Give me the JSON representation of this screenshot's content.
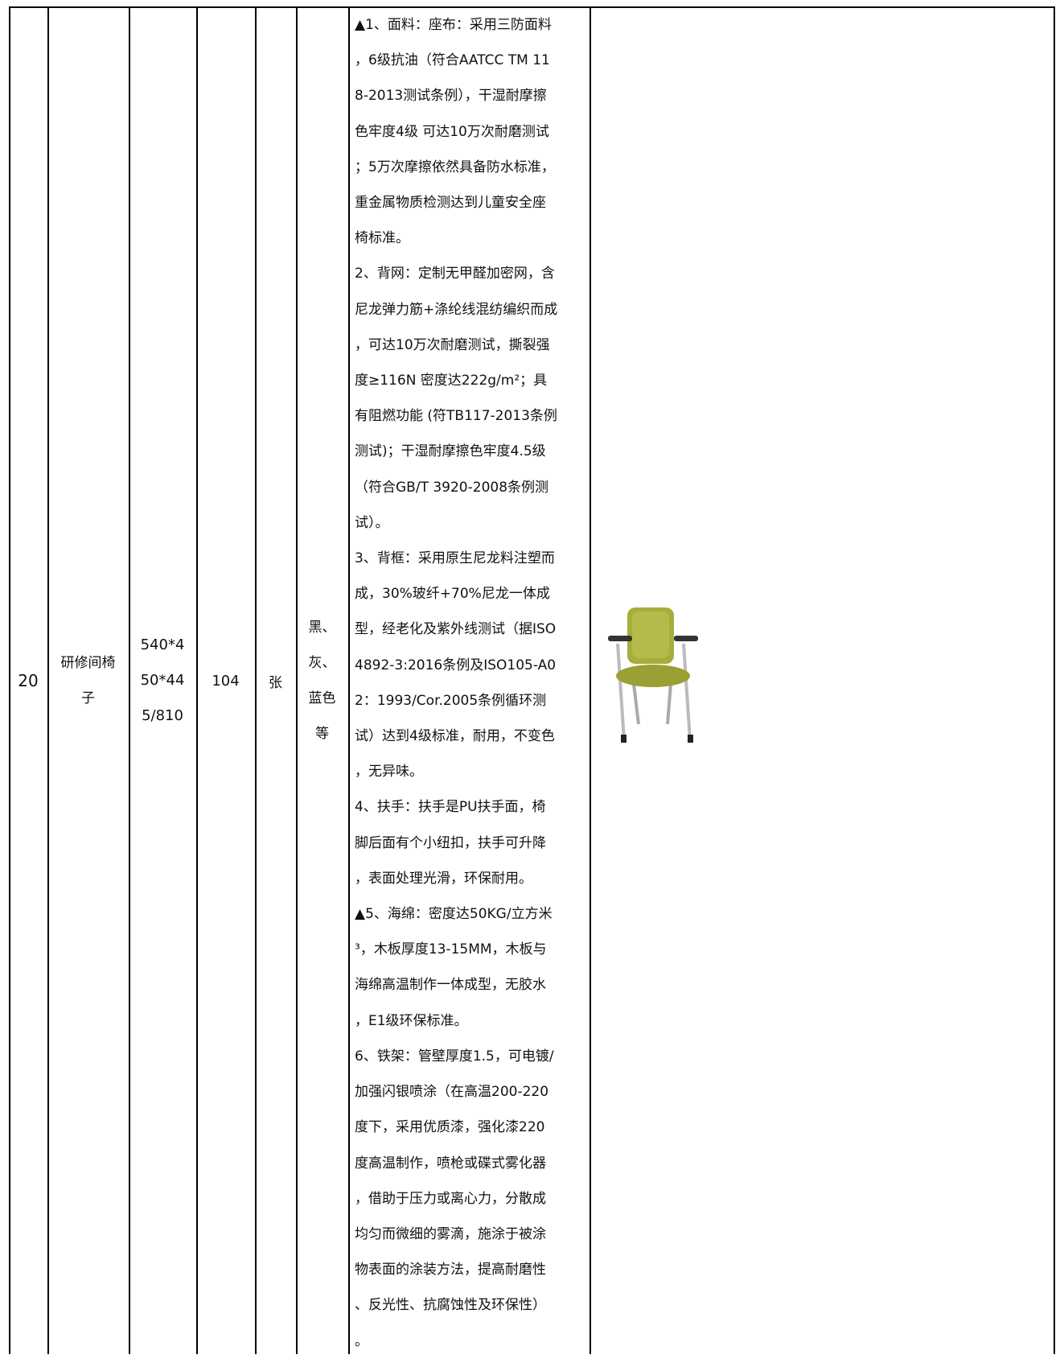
{
  "table": {
    "rows": [
      {
        "number": "20",
        "name": [
          "研修间椅",
          "子"
        ],
        "size": [
          "540*4",
          "50*44",
          "5/810"
        ],
        "quantity": "104",
        "unit": "张",
        "color": [
          "黑、",
          "灰、",
          "蓝色",
          "等"
        ],
        "description": [
          "▲1、面料：座布：采用三防面料",
          "，6级抗油（符合AATCC TM 11",
          "8-2013测试条例），干湿耐摩擦",
          "色牢度4级 可达10万次耐磨测试",
          "；5万次摩擦依然具备防水标准，",
          "重金属物质检测达到儿童安全座",
          "椅标准。",
          "2、背网：定制无甲醛加密网，含",
          "尼龙弹力筋+涤纶线混纺编织而成",
          "，可达10万次耐磨测试，撕裂强",
          "度≥116N  密度达222g/m²；具",
          "有阻燃功能 (符TB117-2013条例",
          "测试)；干湿耐摩擦色牢度4.5级",
          "（符合GB/T 3920-2008条例测",
          "试）。",
          "3、背框：采用原生尼龙料注塑而",
          "成，30%玻纤+70%尼龙一体成",
          "型，经老化及紫外线测试（据ISO",
          "4892-3:2016条例及ISO105-A0",
          "2：1993/Cor.2005条例循环测",
          "试）达到4级标准，耐用，不变色",
          "，无异味。",
          "4、扶手：扶手是PU扶手面，椅",
          "脚后面有个小纽扣，扶手可升降",
          "，表面处理光滑，环保耐用。",
          "▲5、海绵：密度达50KG/立方米",
          "³，木板厚度13-15MM，木板与",
          "海绵高温制作一体成型，无胶水",
          "，E1级环保标准。",
          "6、铁架：管壁厚度1.5，可电镀/",
          "加强闪银喷涂（在高温200-220",
          "度下，采用优质漆，强化漆220",
          "度高温制作，喷枪或碟式雾化器",
          "，借助于压力或离心力，分散成",
          "均匀而微细的雾滴，施涂于被涂",
          "物表面的涂装方法，提高耐磨性",
          "、反光性、抗腐蚀性及环保性）",
          "。"
        ]
      }
    ]
  }
}
